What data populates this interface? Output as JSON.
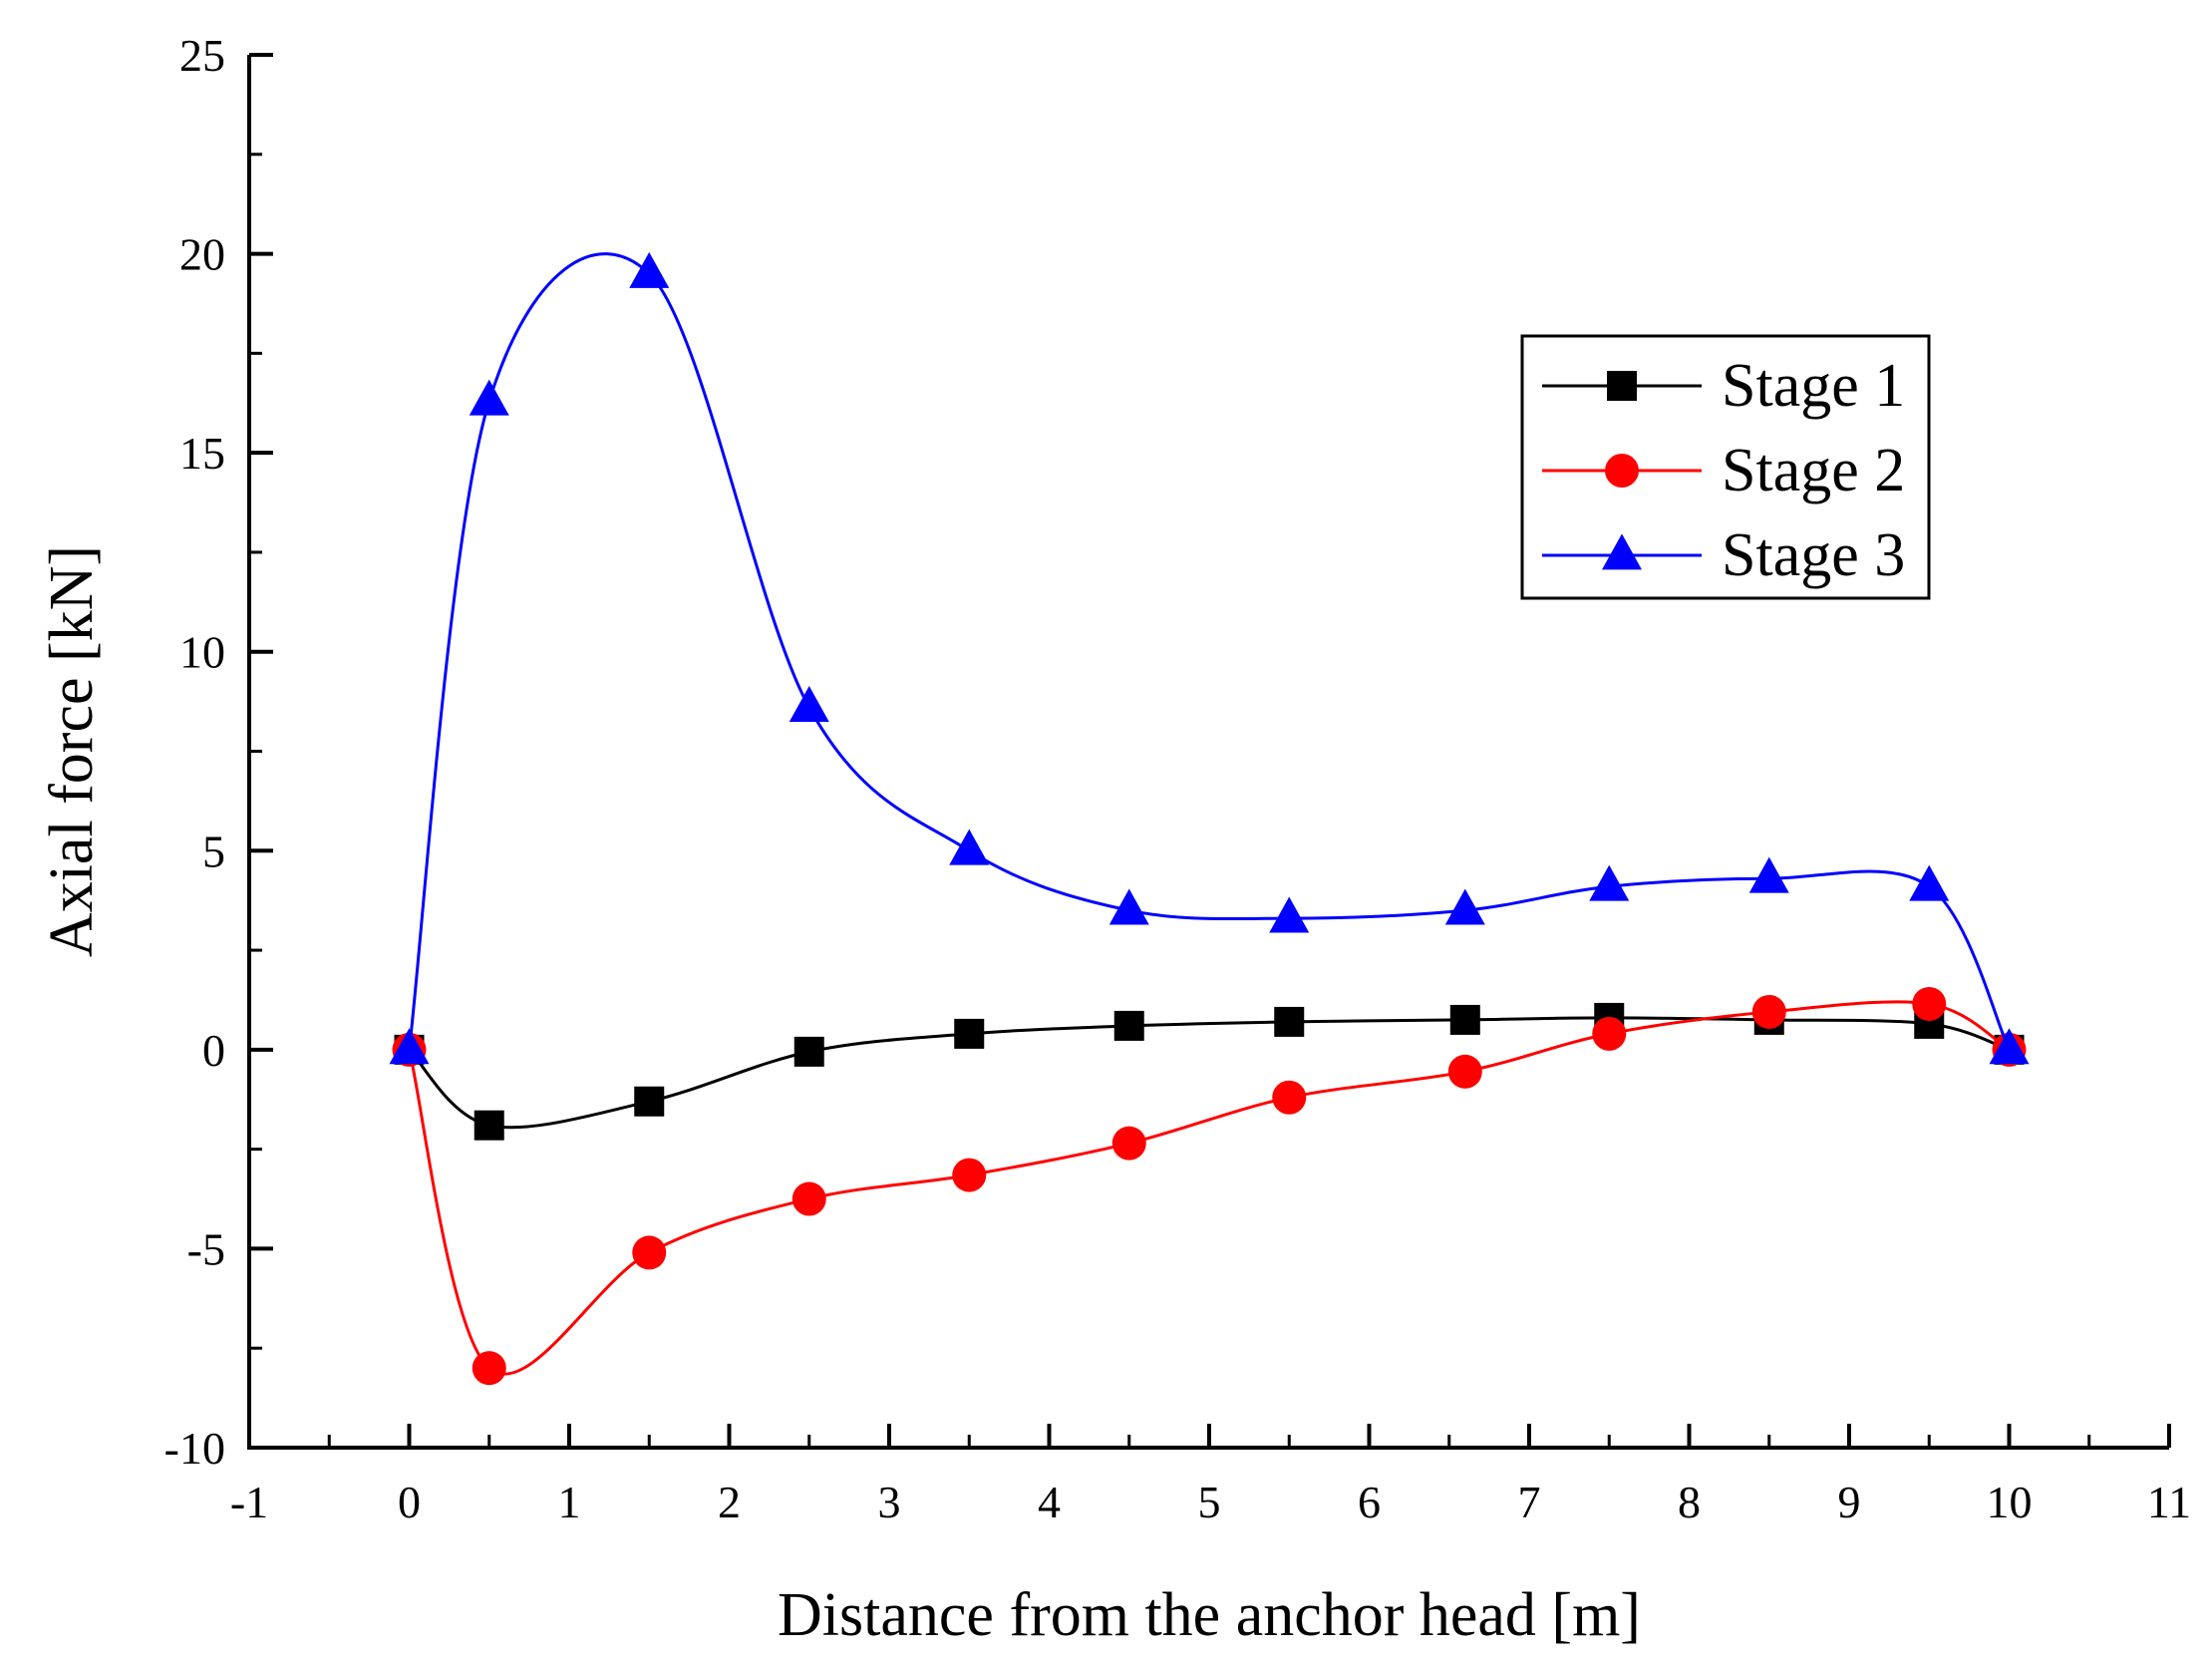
{
  "chart_data": {
    "type": "line",
    "xlabel": "Distance from the anchor head [m]",
    "ylabel": "Axial force [kN]",
    "xlim": [
      -1,
      11
    ],
    "ylim": [
      -10,
      25
    ],
    "xticks": [
      -1,
      0,
      1,
      2,
      3,
      4,
      5,
      6,
      7,
      8,
      9,
      10,
      11
    ],
    "yticks": [
      -10,
      -5,
      0,
      5,
      10,
      15,
      20,
      25
    ],
    "xtick_labels": [
      "-1",
      "0",
      "1",
      "2",
      "3",
      "4",
      "5",
      "6",
      "7",
      "8",
      "9",
      "10",
      "11"
    ],
    "ytick_labels": [
      "-10",
      "-5",
      "0",
      "5",
      "10",
      "15",
      "20",
      "25"
    ],
    "grid": false,
    "legend_position": "top-right",
    "series": [
      {
        "name": "Stage 1",
        "color": "#000000",
        "marker": "square",
        "x": [
          0,
          0.5,
          1.5,
          2.5,
          3.5,
          4.5,
          5.5,
          6.6,
          7.5,
          8.5,
          9.5,
          10
        ],
        "y": [
          0,
          -1.9,
          -1.3,
          -0.05,
          0.4,
          0.6,
          0.7,
          0.75,
          0.8,
          0.75,
          0.65,
          0
        ]
      },
      {
        "name": "Stage 2",
        "color": "#ff0000",
        "marker": "circle",
        "x": [
          0,
          0.5,
          1.5,
          2.5,
          3.5,
          4.5,
          5.5,
          6.6,
          7.5,
          8.5,
          9.5,
          10
        ],
        "y": [
          0,
          -8.0,
          -5.1,
          -3.75,
          -3.15,
          -2.35,
          -1.2,
          -0.55,
          0.4,
          0.95,
          1.15,
          0
        ]
      },
      {
        "name": "Stage 3",
        "color": "#0000ff",
        "marker": "triangle",
        "x": [
          0,
          0.5,
          1.5,
          2.5,
          3.5,
          4.5,
          5.5,
          6.6,
          7.5,
          8.5,
          9.5,
          10
        ],
        "y": [
          0,
          16.3,
          19.5,
          8.6,
          5.0,
          3.5,
          3.3,
          3.5,
          4.1,
          4.3,
          4.1,
          0
        ]
      }
    ]
  }
}
